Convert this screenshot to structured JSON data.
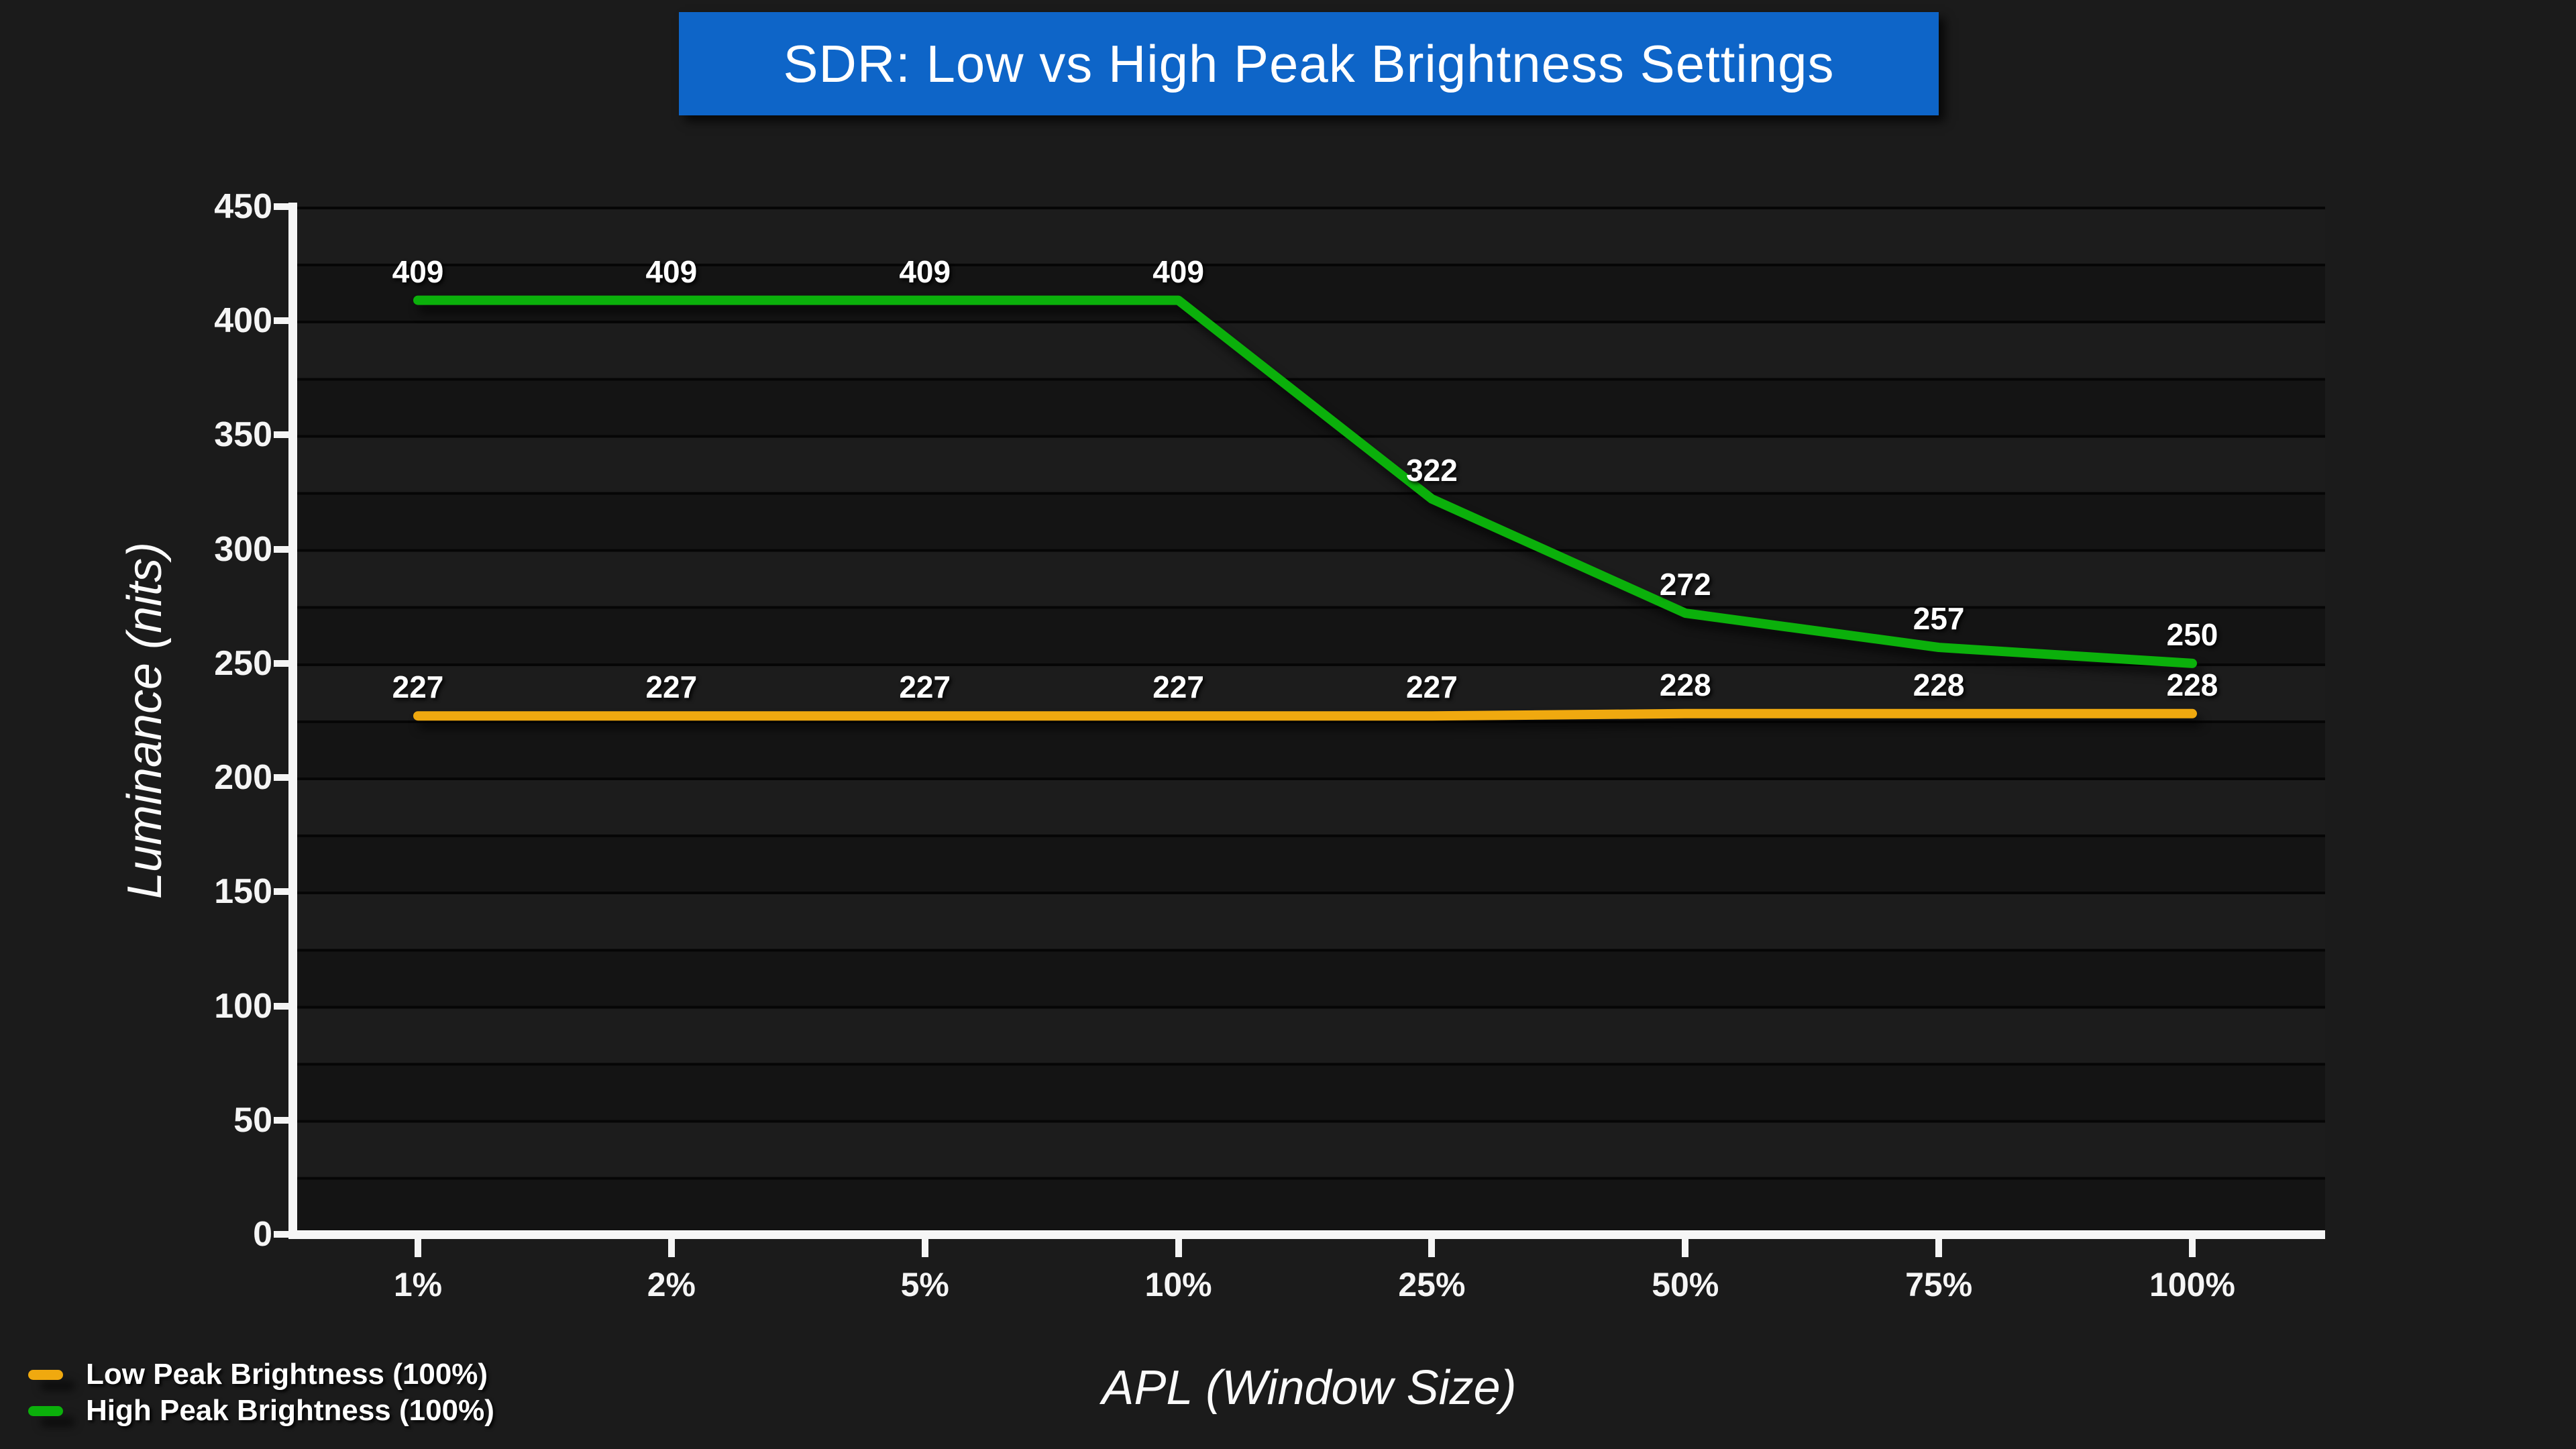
{
  "title": {
    "text": "SDR: Low vs High Peak Brightness Settings"
  },
  "colors": {
    "background": "#1b1b1b",
    "title_box_bg": "#0e65c8",
    "title_box_border": "#6e6e6e",
    "axis": "#f5f5f5",
    "band_light": "#1c1c1c",
    "band_dark": "#141414",
    "gridline": "#060606",
    "low_series": "#f0a90f",
    "high_series": "#0bb00b"
  },
  "chart_data": {
    "type": "line",
    "title": "SDR: Low vs High Peak Brightness Settings",
    "categories": [
      "1%",
      "2%",
      "5%",
      "10%",
      "25%",
      "50%",
      "75%",
      "100%"
    ],
    "series": [
      {
        "name": "Low Peak Brightness (100%)",
        "color": "#f0a90f",
        "values": [
          227,
          227,
          227,
          227,
          227,
          228,
          228,
          228
        ]
      },
      {
        "name": "High Peak Brightness (100%)",
        "color": "#0bb00b",
        "values": [
          409,
          409,
          409,
          409,
          322,
          272,
          257,
          250
        ]
      }
    ],
    "xlabel": "APL (Window Size)",
    "ylabel": "Luminance (nits)",
    "y_ticks": [
      0,
      50,
      100,
      150,
      200,
      250,
      300,
      350,
      400,
      450
    ],
    "ylim": [
      0,
      450
    ],
    "minor_gridline_step": 25,
    "grid": "horizontal",
    "legend_position": "bottom-left",
    "data_labels": true
  },
  "legend": {
    "items": [
      {
        "label": "Low Peak Brightness (100%)",
        "color": "#f0a90f"
      },
      {
        "label": "High Peak Brightness (100%)",
        "color": "#0bb00b"
      }
    ]
  }
}
